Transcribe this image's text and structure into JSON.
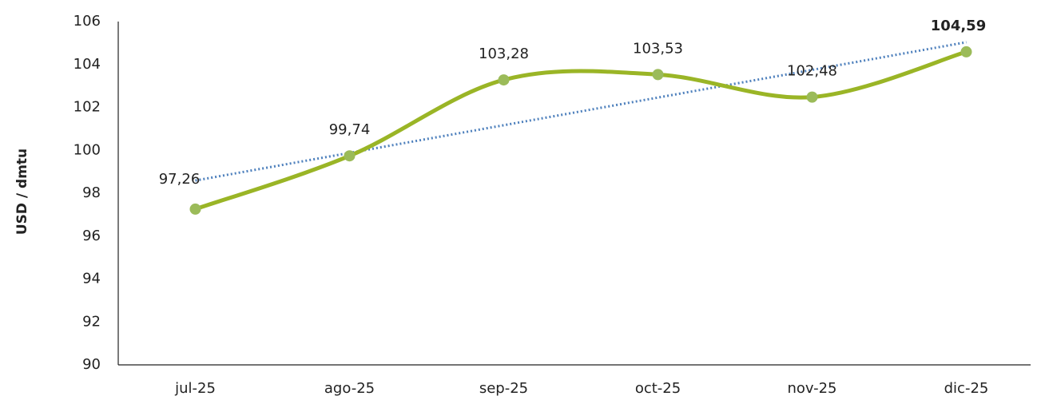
{
  "chart_data": {
    "type": "line",
    "ylabel": "USD / dmtu",
    "categories": [
      "jul-25",
      "ago-25",
      "sep-25",
      "oct-25",
      "nov-25",
      "dic-25"
    ],
    "series": [
      {
        "color": "#9ab526",
        "marker_color": "#9bbb59",
        "values": [
          97.26,
          99.74,
          103.28,
          103.53,
          102.48,
          104.59
        ],
        "value_labels": [
          "97,26",
          "99,74",
          "103,28",
          "103,53",
          "102,48",
          "104,59"
        ],
        "value_label_bold": [
          false,
          false,
          false,
          false,
          false,
          true
        ],
        "smooth": true
      }
    ],
    "trendline": {
      "type": "linear",
      "color": "#4f81bd",
      "style": "dotted"
    },
    "ylim": [
      90,
      106
    ],
    "yticks": [
      90,
      92,
      94,
      96,
      98,
      100,
      102,
      104,
      106
    ],
    "grid": false
  }
}
